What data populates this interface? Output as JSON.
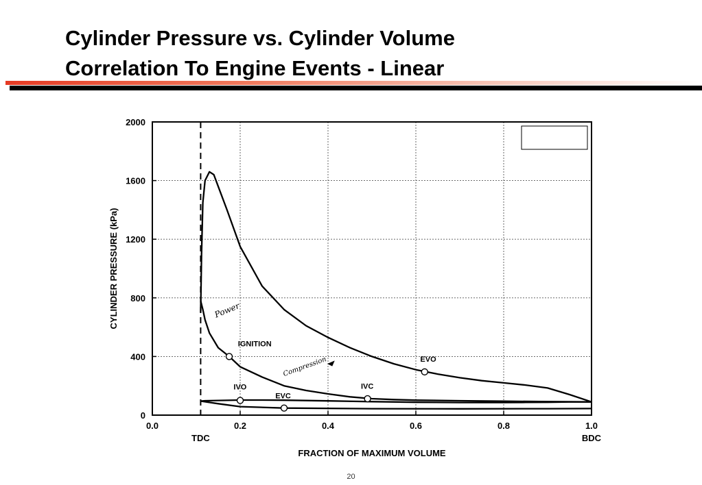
{
  "slide": {
    "title_line1": "Cylinder Pressure vs. Cylinder Volume",
    "title_line2": "Correlation To Engine Events - Linear",
    "page_number": "20"
  },
  "colors": {
    "title": "#000000",
    "accent_rule": "#e53a24",
    "rule": "#000000",
    "curve": "#000000"
  },
  "chart_data": {
    "type": "line",
    "xlabel": "FRACTION OF MAXIMUM VOLUME",
    "ylabel": "CYLINDER PRESSURE (kPa)",
    "xlim": [
      0.0,
      1.0
    ],
    "ylim": [
      0,
      2000
    ],
    "x_ticks": [
      0.0,
      0.2,
      0.4,
      0.6,
      0.8,
      1.0
    ],
    "x_tick_labels": [
      "0.0",
      "0.2",
      "0.4",
      "0.6",
      "0.8",
      "1.0"
    ],
    "y_ticks": [
      0,
      400,
      800,
      1200,
      1600,
      2000
    ],
    "y_tick_labels": [
      "0",
      "400",
      "800",
      "1200",
      "1600",
      "2000"
    ],
    "grid": true,
    "tdc_x": 0.11,
    "tdc_label": "TDC",
    "bdc_label": "BDC",
    "legend_box": "top-right",
    "series": [
      {
        "points": [
          [
            0.11,
            700
          ],
          [
            0.112,
            1100
          ],
          [
            0.115,
            1450
          ],
          [
            0.12,
            1600
          ],
          [
            0.13,
            1660
          ],
          [
            0.14,
            1640
          ],
          [
            0.15,
            1560
          ],
          [
            0.17,
            1400
          ],
          [
            0.2,
            1150
          ],
          [
            0.25,
            880
          ],
          [
            0.3,
            720
          ],
          [
            0.35,
            610
          ],
          [
            0.4,
            530
          ],
          [
            0.45,
            460
          ],
          [
            0.5,
            400
          ],
          [
            0.55,
            350
          ],
          [
            0.6,
            310
          ],
          [
            0.65,
            280
          ],
          [
            0.7,
            255
          ],
          [
            0.75,
            235
          ],
          [
            0.8,
            220
          ],
          [
            0.85,
            205
          ],
          [
            0.9,
            185
          ],
          [
            0.95,
            140
          ],
          [
            1.0,
            90
          ]
        ]
      },
      {
        "points": [
          [
            1.0,
            90
          ],
          [
            0.95,
            90
          ],
          [
            0.9,
            88
          ],
          [
            0.85,
            87
          ],
          [
            0.8,
            86
          ],
          [
            0.7,
            86
          ],
          [
            0.6,
            88
          ],
          [
            0.5,
            92
          ],
          [
            0.4,
            97
          ],
          [
            0.3,
            102
          ],
          [
            0.25,
            103
          ],
          [
            0.2,
            103
          ],
          [
            0.15,
            100
          ],
          [
            0.12,
            98
          ],
          [
            0.11,
            96
          ]
        ]
      },
      {
        "points": [
          [
            0.11,
            96
          ],
          [
            0.15,
            78
          ],
          [
            0.2,
            58
          ],
          [
            0.3,
            48
          ],
          [
            0.5,
            44
          ],
          [
            0.7,
            43
          ],
          [
            0.9,
            44
          ],
          [
            1.0,
            45
          ]
        ]
      },
      {
        "points": [
          [
            1.0,
            90
          ],
          [
            0.9,
            92
          ],
          [
            0.8,
            95
          ],
          [
            0.7,
            98
          ],
          [
            0.6,
            102
          ],
          [
            0.55,
            106
          ],
          [
            0.5,
            112
          ],
          [
            0.45,
            125
          ],
          [
            0.4,
            145
          ],
          [
            0.35,
            168
          ],
          [
            0.3,
            200
          ],
          [
            0.25,
            260
          ],
          [
            0.2,
            330
          ],
          [
            0.175,
            400
          ],
          [
            0.15,
            460
          ],
          [
            0.13,
            560
          ],
          [
            0.12,
            650
          ],
          [
            0.115,
            720
          ],
          [
            0.11,
            780
          ]
        ]
      }
    ],
    "annotations": [
      {
        "label": "IGNITION",
        "x": 0.175,
        "y": 400,
        "label_x": 0.195,
        "label_y": 470
      },
      {
        "label": "EVO",
        "x": 0.62,
        "y": 295,
        "label_x": 0.61,
        "label_y": 365
      },
      {
        "label": "IVO",
        "x": 0.2,
        "y": 100,
        "label_x": 0.185,
        "label_y": 175
      },
      {
        "label": "EVC",
        "x": 0.3,
        "y": 48,
        "label_x": 0.28,
        "label_y": 115
      },
      {
        "label": "IVC",
        "x": 0.49,
        "y": 112,
        "label_x": 0.475,
        "label_y": 180
      }
    ],
    "handwritten_notes": [
      "Power",
      "Compression"
    ]
  }
}
